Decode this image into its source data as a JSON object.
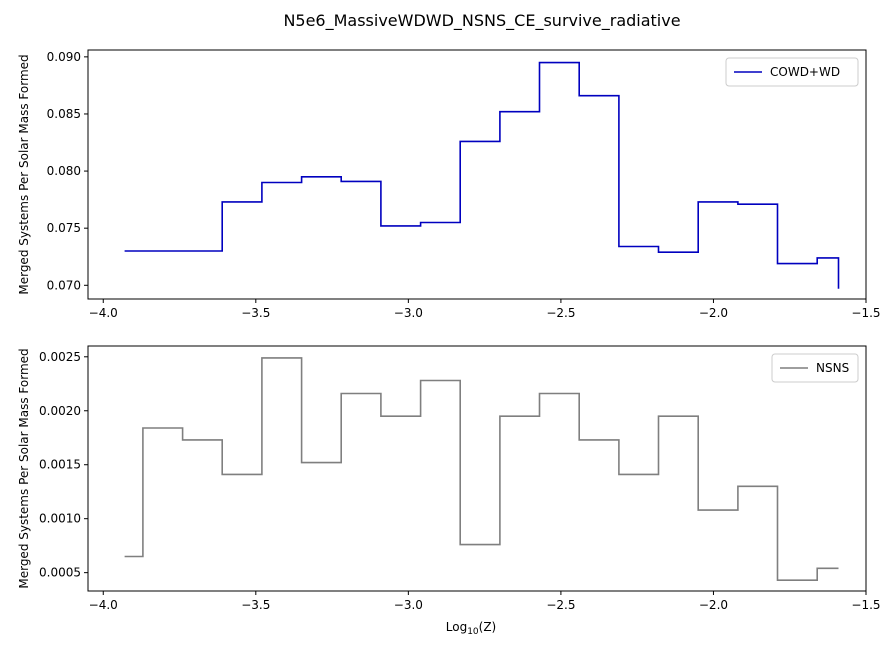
{
  "figure": {
    "title": "N5e6_MassiveWDWD_NSNS_CE_survive_radiative"
  },
  "chart_data": [
    {
      "type": "line",
      "style": "step",
      "ylabel": "Merged Systems Per Solar Mass Formed",
      "xlabel": "",
      "xlim": [
        -4.05,
        -1.5
      ],
      "ylim": [
        0.0688,
        0.0906
      ],
      "xticks": [
        -4.0,
        -3.5,
        -3.0,
        -2.5,
        -2.0,
        -1.5
      ],
      "xtick_labels": [
        "−4.0",
        "−3.5",
        "−3.0",
        "−2.5",
        "−2.0",
        "−1.5"
      ],
      "yticks": [
        0.07,
        0.075,
        0.08,
        0.085,
        0.09
      ],
      "ytick_labels": [
        "0.070",
        "0.075",
        "0.080",
        "0.085",
        "0.090"
      ],
      "legend": "top-right",
      "series": [
        {
          "name": "COWD+WD",
          "color": "#0000bf",
          "x": [
            -3.93,
            -3.74,
            -3.61,
            -3.48,
            -3.35,
            -3.22,
            -3.09,
            -2.96,
            -2.83,
            -2.7,
            -2.57,
            -2.44,
            -2.31,
            -2.18,
            -2.05,
            -1.92,
            -1.79,
            -1.66,
            -1.59
          ],
          "y": [
            0.073,
            0.073,
            0.0773,
            0.079,
            0.0795,
            0.0791,
            0.0752,
            0.0755,
            0.0826,
            0.0852,
            0.0895,
            0.0866,
            0.0734,
            0.0729,
            0.0773,
            0.0771,
            0.0719,
            0.0724,
            0.0697
          ]
        }
      ]
    },
    {
      "type": "line",
      "style": "step",
      "ylabel": "Merged Systems Per Solar Mass Formed",
      "xlabel": "Log",
      "xlabel_sub": "10",
      "xlabel_suffix": "(Z)",
      "xlim": [
        -4.05,
        -1.5
      ],
      "ylim": [
        0.00033,
        0.0026
      ],
      "xticks": [
        -4.0,
        -3.5,
        -3.0,
        -2.5,
        -2.0,
        -1.5
      ],
      "xtick_labels": [
        "−4.0",
        "−3.5",
        "−3.0",
        "−2.5",
        "−2.0",
        "−1.5"
      ],
      "yticks": [
        0.0005,
        0.001,
        0.0015,
        0.002,
        0.0025
      ],
      "ytick_labels": [
        "0.0005",
        "0.0010",
        "0.0015",
        "0.0020",
        "0.0025"
      ],
      "legend": "top-right",
      "series": [
        {
          "name": "NSNS",
          "color": "#7f7f7f",
          "x": [
            -3.93,
            -3.87,
            -3.74,
            -3.61,
            -3.48,
            -3.35,
            -3.22,
            -3.09,
            -2.96,
            -2.83,
            -2.7,
            -2.57,
            -2.44,
            -2.31,
            -2.18,
            -2.05,
            -1.92,
            -1.79,
            -1.66,
            -1.59
          ],
          "y": [
            0.00065,
            0.00184,
            0.00173,
            0.00141,
            0.00249,
            0.00152,
            0.00216,
            0.00195,
            0.00228,
            0.00076,
            0.00195,
            0.00216,
            0.00173,
            0.00141,
            0.00195,
            0.00108,
            0.0013,
            0.00043,
            0.00054,
            0.00054
          ]
        }
      ]
    }
  ]
}
